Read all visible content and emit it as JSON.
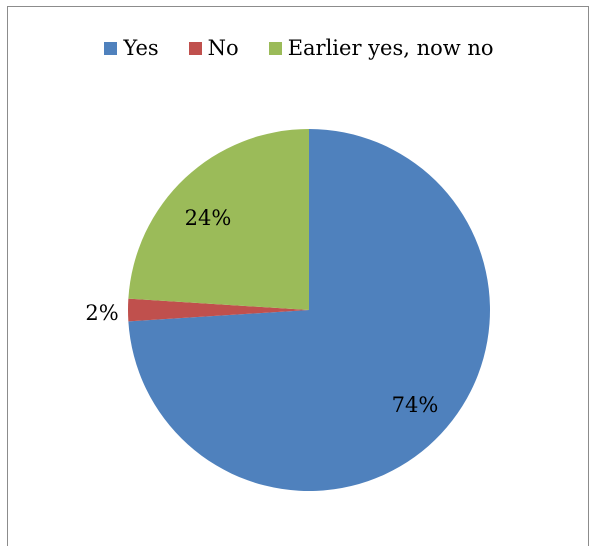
{
  "chart_data": {
    "type": "pie",
    "categories": [
      "Yes",
      "No",
      "Earlier yes, now no"
    ],
    "values": [
      74,
      2,
      24
    ],
    "labels": [
      "74%",
      "2%",
      "24%"
    ],
    "colors": [
      "#4f81bd",
      "#c0504d",
      "#9bbb59"
    ],
    "legend": "top"
  }
}
